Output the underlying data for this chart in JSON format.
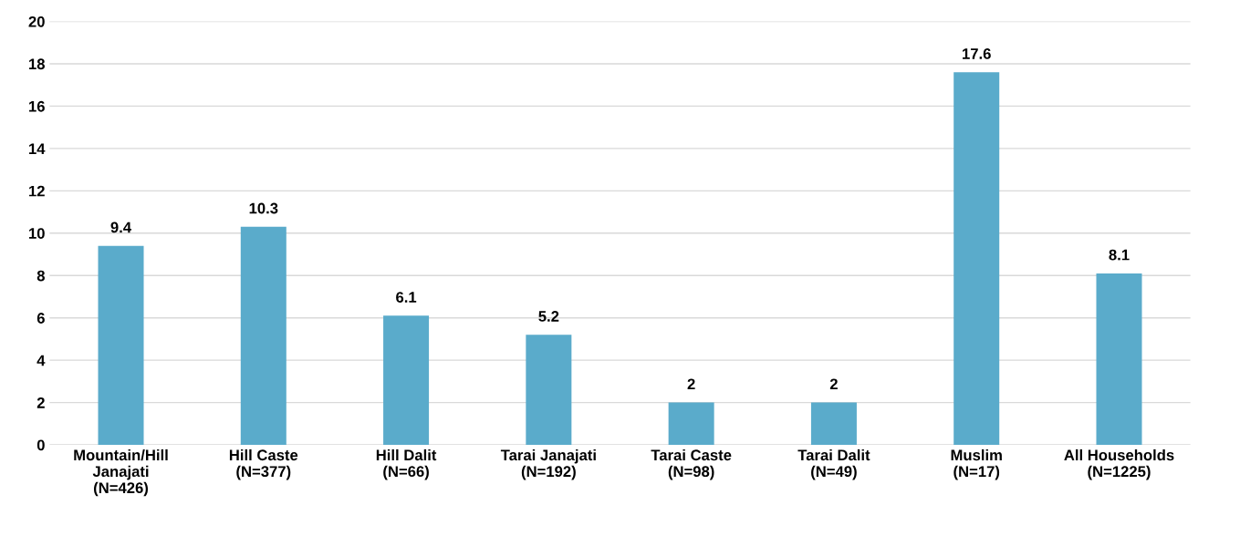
{
  "chart_data": {
    "type": "bar",
    "categories": [
      "Mountain/Hill\nJanajati\n(N=426)",
      "Hill Caste\n(N=377)",
      "Hill Dalit\n(N=66)",
      "Tarai Janajati\n(N=192)",
      "Tarai Caste\n(N=98)",
      "Tarai Dalit\n(N=49)",
      "Muslim\n(N=17)",
      "All Households\n(N=1225)"
    ],
    "values": [
      9.4,
      10.3,
      6.1,
      5.2,
      2,
      2,
      17.6,
      8.1
    ],
    "color": "#5aabcb",
    "ylim": [
      0,
      20
    ],
    "yticks": [
      0,
      2,
      4,
      6,
      8,
      10,
      12,
      14,
      16,
      18,
      20
    ],
    "grid": "y",
    "data_labels": true
  }
}
